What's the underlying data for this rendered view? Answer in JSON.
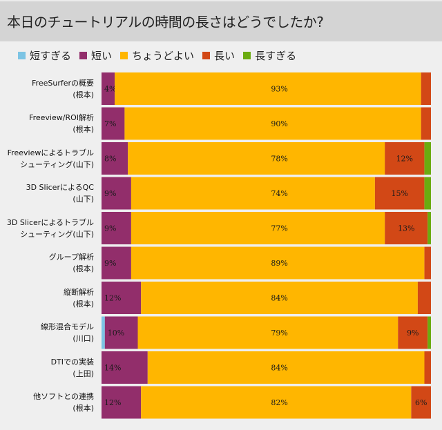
{
  "chart_data": {
    "type": "bar",
    "orientation": "horizontal",
    "stacked": "percent",
    "title": "本日のチュートリアルの時間の長さはどうでしたか?",
    "xlabel": "",
    "ylabel": "",
    "xlim": [
      0,
      100
    ],
    "grid": false,
    "legend_position": "top",
    "categories": [
      {
        "line1": "FreeSurferの概要",
        "line2": "(根本)"
      },
      {
        "line1": "Freeview/ROI解析",
        "line2": "(根本)"
      },
      {
        "line1": "Freeviewによるトラブル",
        "line2": "シューティング(山下)"
      },
      {
        "line1": "3D SlicerによるQC",
        "line2": "(山下)"
      },
      {
        "line1": "3D Slicerによるトラブル",
        "line2": "シューティング(山下)"
      },
      {
        "line1": "グループ解析",
        "line2": "(根本)"
      },
      {
        "line1": "縦断解析",
        "line2": "(根本)"
      },
      {
        "line1": "線形混合モデル",
        "line2": "(川口)"
      },
      {
        "line1": "DTIでの実装",
        "line2": "(上田)"
      },
      {
        "line1": "他ソフトとの連携",
        "line2": "(根本)"
      }
    ],
    "series": [
      {
        "name": "短すぎる",
        "color": "#7cc4e4",
        "values": [
          0,
          0,
          0,
          0,
          0,
          0,
          0,
          1,
          0,
          0
        ],
        "labels": [
          "",
          "",
          "",
          "",
          "",
          "",
          "",
          "",
          "",
          ""
        ]
      },
      {
        "name": "短い",
        "color": "#922e6b",
        "values": [
          4,
          7,
          8,
          9,
          9,
          9,
          12,
          10,
          14,
          12
        ],
        "labels": [
          "4%",
          "7%",
          "8%",
          "9%",
          "9%",
          "9%",
          "12%",
          "10%",
          "14%",
          "12%"
        ]
      },
      {
        "name": "ちょうどよい",
        "color": "#ffb600",
        "values": [
          93,
          90,
          78,
          74,
          77,
          89,
          84,
          79,
          84,
          82
        ],
        "labels": [
          "93%",
          "90%",
          "78%",
          "74%",
          "77%",
          "89%",
          "84%",
          "79%",
          "84%",
          "82%"
        ]
      },
      {
        "name": "長い",
        "color": "#d24816",
        "values": [
          3,
          3,
          12,
          15,
          13,
          2,
          4,
          9,
          2,
          6
        ],
        "labels": [
          "",
          "",
          "12%",
          "15%",
          "13%",
          "",
          "",
          "9%",
          "",
          "6%"
        ]
      },
      {
        "name": "長すぎる",
        "color": "#6aab10",
        "values": [
          0,
          0,
          2,
          2,
          1,
          0,
          0,
          1,
          0,
          0
        ],
        "labels": [
          "",
          "",
          "",
          "",
          "",
          "",
          "",
          "",
          "",
          ""
        ]
      }
    ]
  }
}
